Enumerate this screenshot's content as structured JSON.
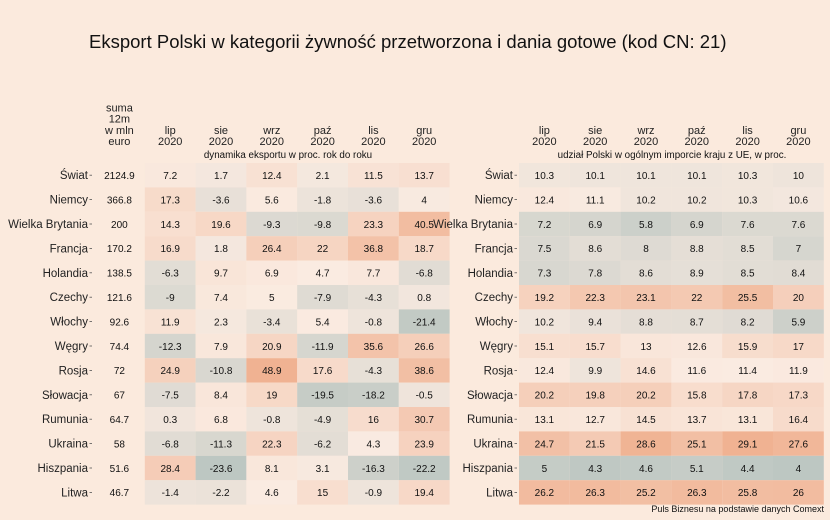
{
  "title": "Eksport Polski w kategorii żywność przetworzona i dania gotowe (kod CN: 21)",
  "caption": "Puls Biznesu na podstawie danych Comext",
  "chart_data": [
    {
      "type": "heatmap",
      "subtitle": "dynamika eksportu w proc. rok do roku",
      "columns": [
        {
          "label": [
            "suma",
            "12m",
            "w mln",
            "euro"
          ]
        },
        {
          "label": [
            "lip",
            "2020"
          ]
        },
        {
          "label": [
            "sie",
            "2020"
          ]
        },
        {
          "label": [
            "wrz",
            "2020"
          ]
        },
        {
          "label": [
            "paź",
            "2020"
          ]
        },
        {
          "label": [
            "lis",
            "2020"
          ]
        },
        {
          "label": [
            "gru",
            "2020"
          ]
        }
      ],
      "rows": [
        "Świat",
        "Niemcy",
        "Wielka Brytania",
        "Francja",
        "Holandia",
        "Czechy",
        "Włochy",
        "Węgry",
        "Rosja",
        "Słowacja",
        "Rumunia",
        "Ukraina",
        "Hiszpania",
        "Litwa"
      ],
      "values": [
        [
          "2124.9",
          "7.2",
          "1.7",
          "12.4",
          "2.1",
          "11.5",
          "13.7"
        ],
        [
          "366.8",
          "17.3",
          "-3.6",
          "5.6",
          "-1.8",
          "-3.6",
          "4"
        ],
        [
          "200",
          "14.3",
          "19.6",
          "-9.3",
          "-9.8",
          "23.3",
          "40.5"
        ],
        [
          "170.2",
          "16.9",
          "1.8",
          "26.4",
          "22",
          "36.8",
          "18.7"
        ],
        [
          "138.5",
          "-6.3",
          "9.7",
          "6.9",
          "4.7",
          "7.7",
          "-6.8"
        ],
        [
          "121.6",
          "-9",
          "7.4",
          "5",
          "-7.9",
          "-4.3",
          "0.8"
        ],
        [
          "92.6",
          "11.9",
          "2.3",
          "-3.4",
          "5.4",
          "-0.8",
          "-21.4"
        ],
        [
          "74.4",
          "-12.3",
          "7.9",
          "20.9",
          "-11.9",
          "35.6",
          "26.6"
        ],
        [
          "72",
          "24.9",
          "-10.8",
          "48.9",
          "17.6",
          "-4.3",
          "38.6"
        ],
        [
          "67",
          "-7.5",
          "8.4",
          "19",
          "-19.5",
          "-18.2",
          "-0.5"
        ],
        [
          "64.7",
          "0.3",
          "6.8",
          "-0.8",
          "-4.9",
          "16",
          "30.7"
        ],
        [
          "58",
          "-6.8",
          "-11.3",
          "22.3",
          "-6.2",
          "4.3",
          "23.9"
        ],
        [
          "51.6",
          "28.4",
          "-23.6",
          "8.1",
          "3.1",
          "-16.3",
          "-22.2"
        ],
        [
          "46.7",
          "-1.4",
          "-2.2",
          "4.6",
          "15",
          "-0.9",
          "19.4"
        ]
      ]
    },
    {
      "type": "heatmap",
      "subtitle": "udział Polski w ogólnym imporcie kraju z UE, w proc.",
      "columns": [
        {
          "label": [
            "lip",
            "2020"
          ]
        },
        {
          "label": [
            "sie",
            "2020"
          ]
        },
        {
          "label": [
            "wrz",
            "2020"
          ]
        },
        {
          "label": [
            "paź",
            "2020"
          ]
        },
        {
          "label": [
            "lis",
            "2020"
          ]
        },
        {
          "label": [
            "gru",
            "2020"
          ]
        }
      ],
      "rows": [
        "Świat",
        "Niemcy",
        "Wielka Brytania",
        "Francja",
        "Holandia",
        "Czechy",
        "Włochy",
        "Węgry",
        "Rosja",
        "Słowacja",
        "Rumunia",
        "Ukraina",
        "Hiszpania",
        "Litwa"
      ],
      "values": [
        [
          "10.3",
          "10.1",
          "10.1",
          "10.1",
          "10.3",
          "10"
        ],
        [
          "12.4",
          "11.1",
          "10.2",
          "10.2",
          "10.3",
          "10.6"
        ],
        [
          "7.2",
          "6.9",
          "5.8",
          "6.9",
          "7.6",
          "7.6"
        ],
        [
          "7.5",
          "8.6",
          "8",
          "8.8",
          "8.5",
          "7"
        ],
        [
          "7.3",
          "7.8",
          "8.6",
          "8.9",
          "8.5",
          "8.4"
        ],
        [
          "19.2",
          "22.3",
          "23.1",
          "22",
          "25.5",
          "20"
        ],
        [
          "10.2",
          "9.4",
          "8.8",
          "8.7",
          "8.2",
          "5.9"
        ],
        [
          "15.1",
          "15.7",
          "13",
          "12.6",
          "15.9",
          "17"
        ],
        [
          "12.4",
          "9.9",
          "14.6",
          "11.6",
          "11.4",
          "11.9"
        ],
        [
          "20.2",
          "19.8",
          "20.2",
          "15.8",
          "17.8",
          "17.3"
        ],
        [
          "13.1",
          "12.7",
          "14.5",
          "13.7",
          "13.1",
          "16.4"
        ],
        [
          "24.7",
          "21.5",
          "28.6",
          "25.1",
          "29.1",
          "27.6"
        ],
        [
          "5",
          "4.3",
          "4.6",
          "5.1",
          "4.4",
          "4"
        ],
        [
          "26.2",
          "26.3",
          "25.2",
          "26.3",
          "25.8",
          "26"
        ]
      ]
    }
  ]
}
